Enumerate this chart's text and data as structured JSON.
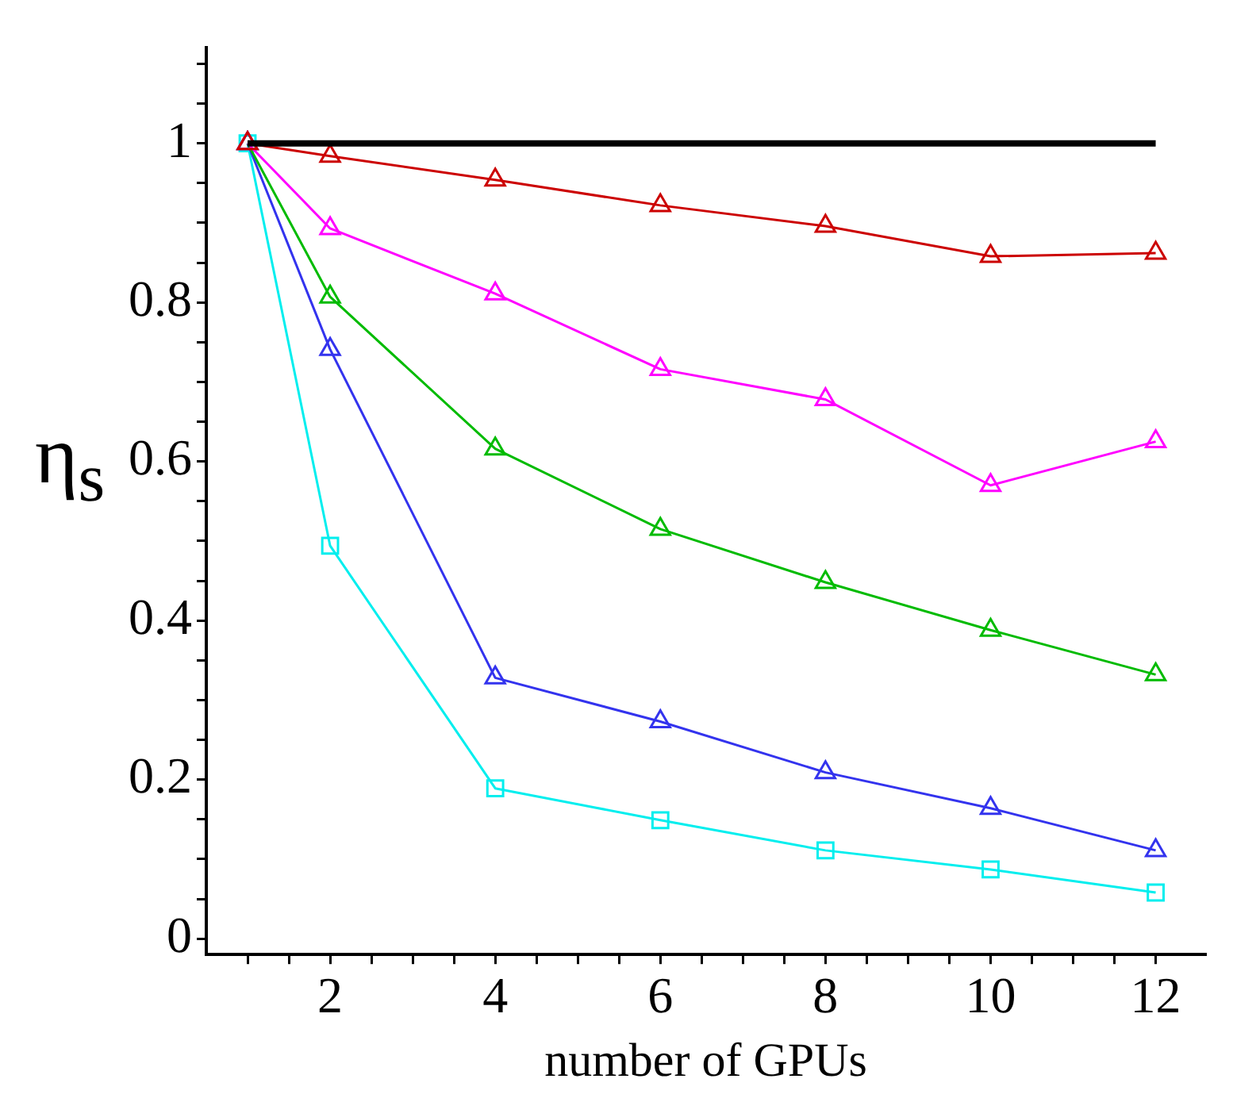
{
  "chart_data": {
    "type": "line",
    "xlabel": "number of GPUs",
    "ylabel": "η$_{s}$",
    "x": [
      1,
      2,
      4,
      6,
      8,
      10,
      12
    ],
    "xlim": [
      0.5,
      12.6
    ],
    "ylim": [
      -0.02,
      1.12
    ],
    "xticks": [
      {
        "value": 1,
        "label": null
      },
      {
        "value": 1.5,
        "label": null
      },
      2,
      {
        "value": 2.5,
        "label": null
      },
      {
        "value": 3,
        "label": null
      },
      {
        "value": 3.5,
        "label": null
      },
      4,
      {
        "value": 4.5,
        "label": null
      },
      {
        "value": 5,
        "label": null
      },
      {
        "value": 5.5,
        "label": null
      },
      6,
      {
        "value": 6.5,
        "label": null
      },
      {
        "value": 7,
        "label": null
      },
      {
        "value": 7.5,
        "label": null
      },
      8,
      {
        "value": 8.5,
        "label": null
      },
      {
        "value": 9,
        "label": null
      },
      {
        "value": 9.5,
        "label": null
      },
      10,
      {
        "value": 10.5,
        "label": null
      },
      {
        "value": 11,
        "label": null
      },
      {
        "value": 11.5,
        "label": null
      },
      12
    ],
    "yticks": [
      0,
      {
        "value": 0.05,
        "label": null
      },
      {
        "value": 0.1,
        "label": null
      },
      {
        "value": 0.15,
        "label": null
      },
      0.2,
      {
        "value": 0.25,
        "label": null
      },
      {
        "value": 0.3,
        "label": null
      },
      {
        "value": 0.35,
        "label": null
      },
      0.4,
      {
        "value": 0.45,
        "label": null
      },
      {
        "value": 0.5,
        "label": null
      },
      {
        "value": 0.55,
        "label": null
      },
      0.6,
      {
        "value": 0.65,
        "label": null
      },
      {
        "value": 0.7,
        "label": null
      },
      {
        "value": 0.75,
        "label": null
      },
      0.8,
      {
        "value": 0.85,
        "label": null
      },
      {
        "value": 0.9,
        "label": null
      },
      {
        "value": 0.95,
        "label": null
      },
      1,
      {
        "value": 1.05,
        "label": null
      },
      {
        "value": 1.1,
        "label": null
      }
    ],
    "grid": false,
    "legend": false,
    "series": [
      {
        "color": "#000000",
        "x": [
          1,
          12
        ],
        "values": [
          1,
          1
        ],
        "marker": "none"
      },
      {
        "color": "#cc0000",
        "values": [
          1,
          0.984,
          0.954,
          0.922,
          0.896,
          0.858,
          0.862
        ],
        "marker": "triangle"
      },
      {
        "color": "#ff00ff",
        "values": [
          1,
          0.893,
          0.811,
          0.716,
          0.678,
          0.57,
          0.625
        ],
        "marker": "triangle"
      },
      {
        "color": "#00bb00",
        "values": [
          1,
          0.807,
          0.616,
          0.515,
          0.448,
          0.388,
          0.332
        ],
        "marker": "triangle"
      },
      {
        "color": "#3333ee",
        "values": [
          1,
          0.741,
          0.328,
          0.273,
          0.209,
          0.164,
          0.111
        ],
        "marker": "triangle"
      },
      {
        "color": "#00eeee",
        "values": [
          1,
          0.494,
          0.189,
          0.149,
          0.111,
          0.087,
          0.058
        ],
        "marker": "square"
      }
    ]
  }
}
